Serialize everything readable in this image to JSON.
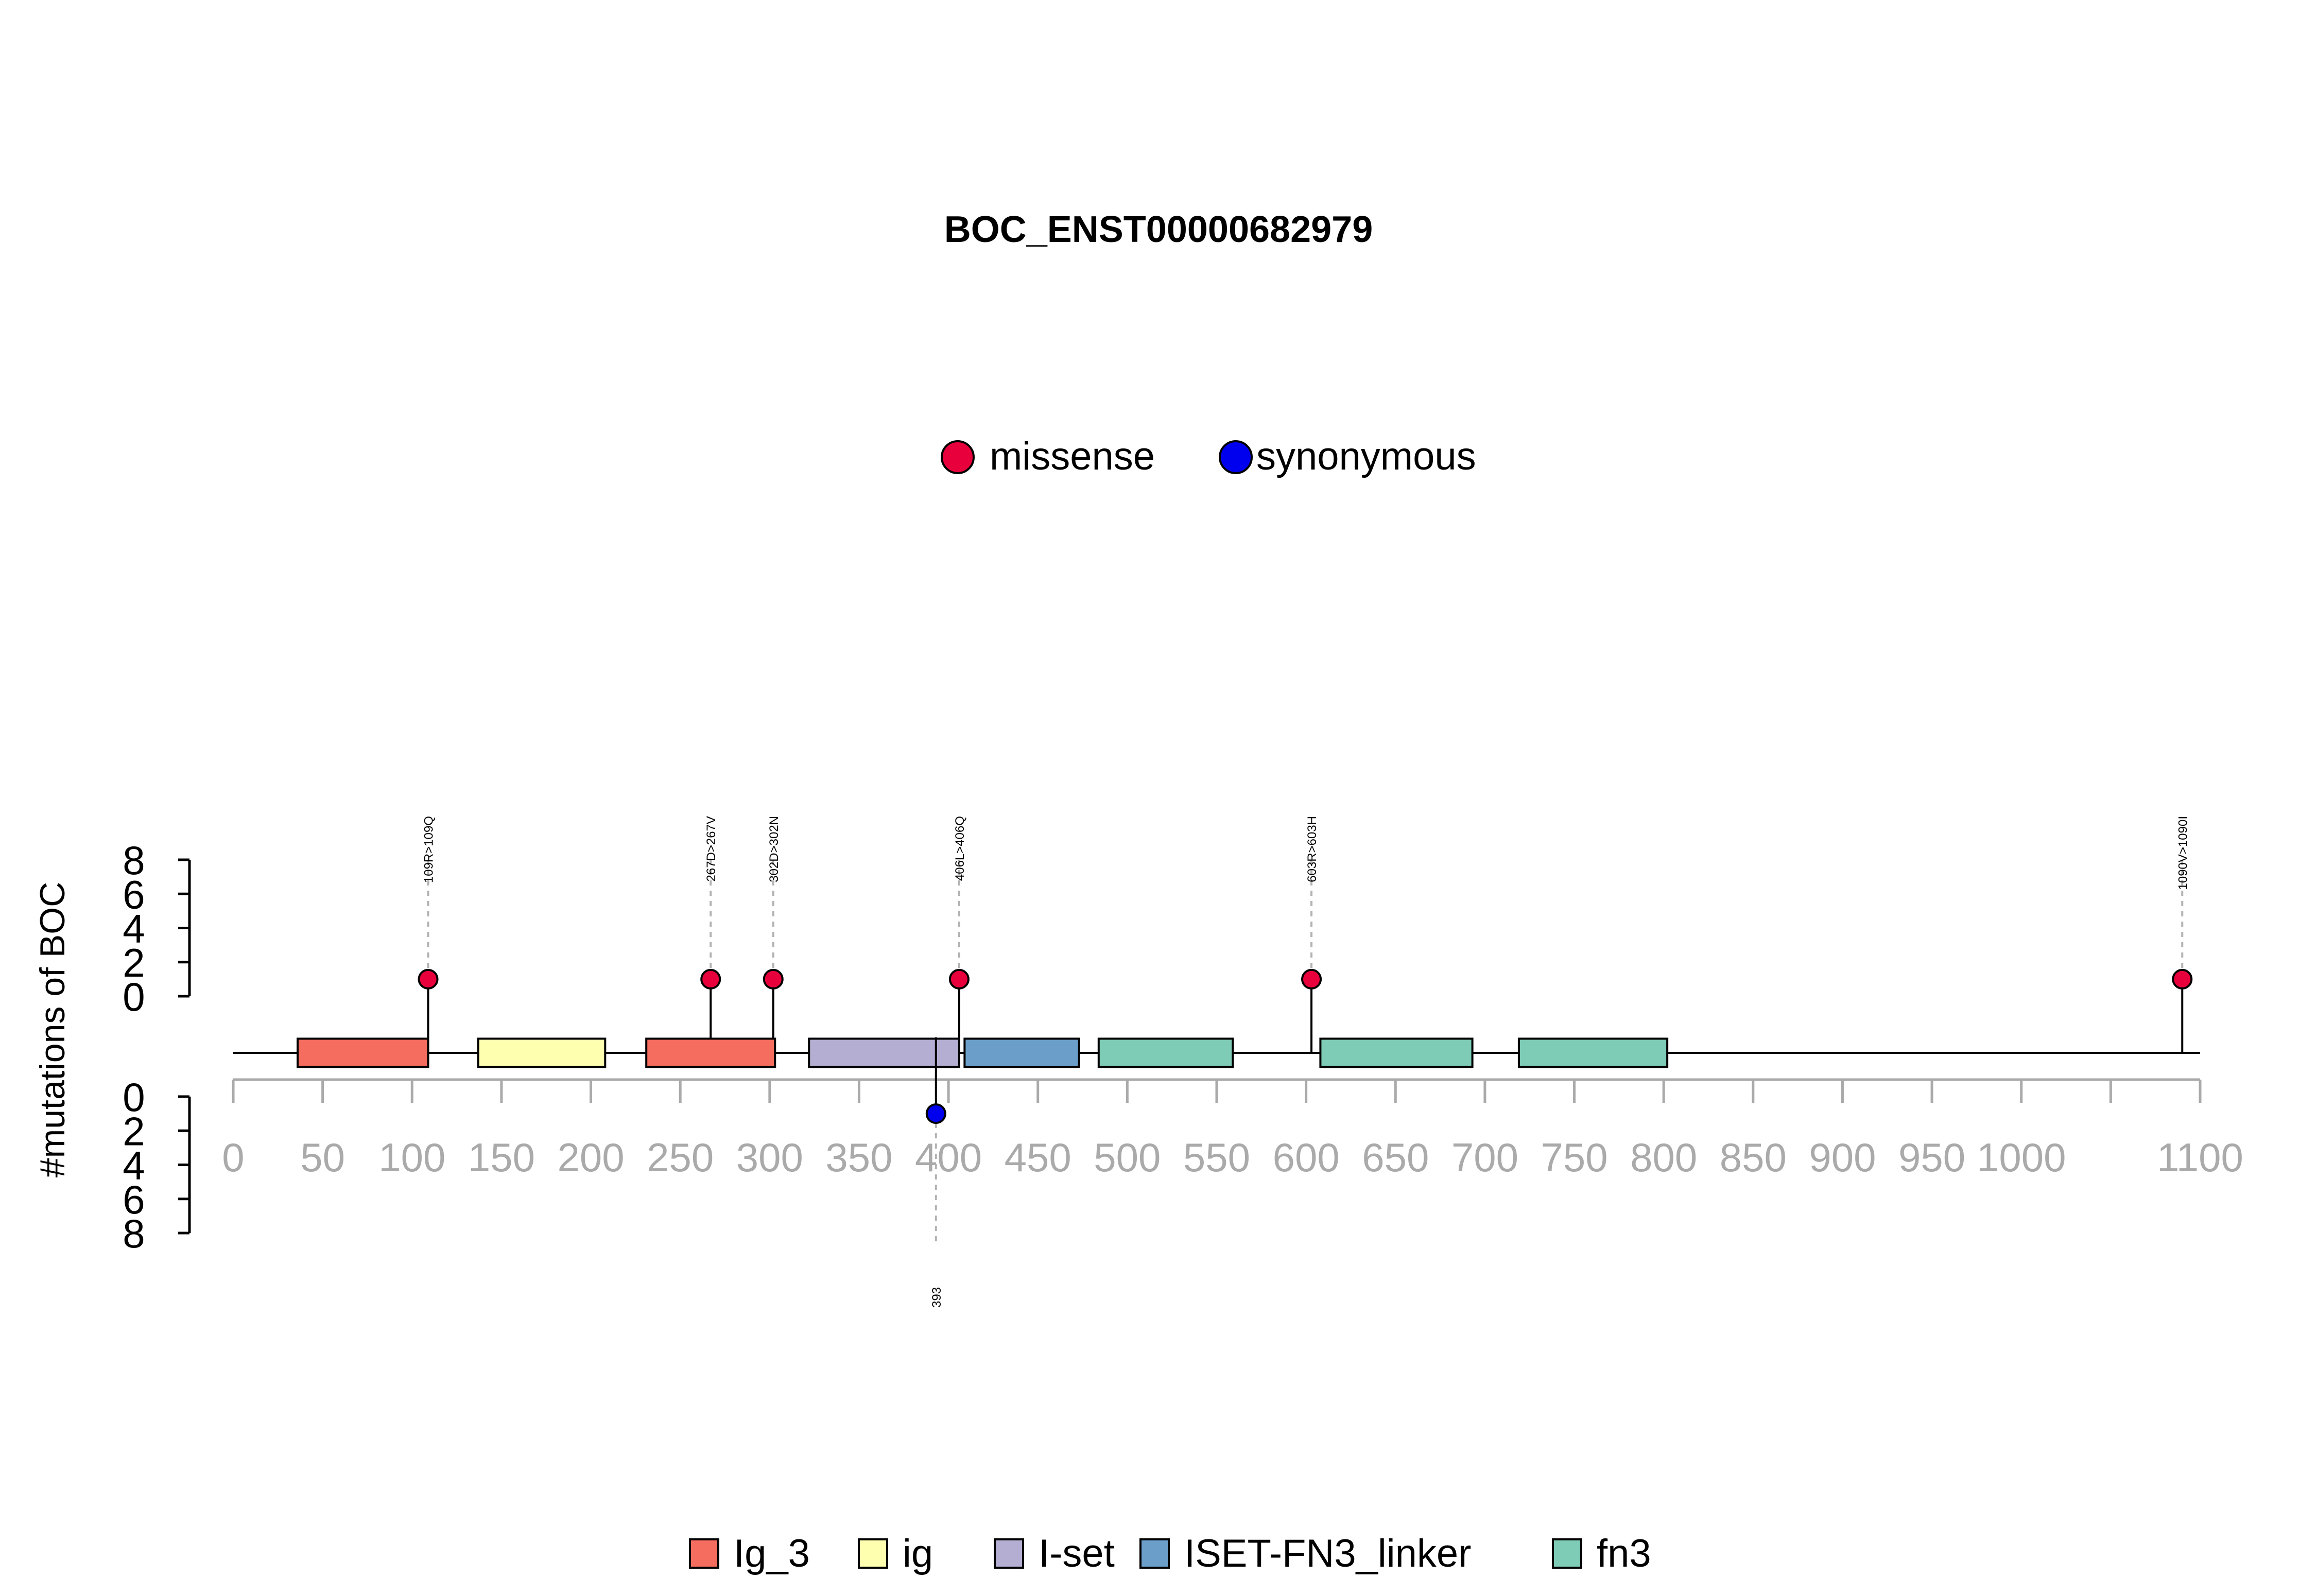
{
  "chart_data": {
    "type": "lollipop",
    "title": "BOC_ENST00000682979",
    "ylabel": "#mutations of BOC",
    "x_ticks": [
      "0",
      "50",
      "100",
      "150",
      "200",
      "250",
      "300",
      "350",
      "400",
      "450",
      "500",
      "550",
      "600",
      "650",
      "700",
      "750",
      "800",
      "850",
      "900",
      "950",
      "1000",
      "1100"
    ],
    "x_tick_values": [
      0,
      50,
      100,
      150,
      200,
      250,
      300,
      350,
      400,
      450,
      500,
      550,
      600,
      650,
      700,
      750,
      800,
      850,
      900,
      950,
      1000,
      1100
    ],
    "xlim": [
      0,
      1100
    ],
    "y_ticks": [
      "0",
      "2",
      "4",
      "6",
      "8"
    ],
    "y_tick_values": [
      0,
      2,
      4,
      6,
      8
    ],
    "ylim": [
      0,
      8
    ],
    "mutation_legend": [
      {
        "label": "missense",
        "color": "#e8003c"
      },
      {
        "label": "synonymous",
        "color": "#0000ee"
      }
    ],
    "domain_legend": [
      {
        "label": "Ig_3",
        "color": "#f46d5e"
      },
      {
        "label": "ig",
        "color": "#ffffb0"
      },
      {
        "label": "I-set",
        "color": "#b3aed2"
      },
      {
        "label": "ISET-FN3_linker",
        "color": "#6b9fca"
      },
      {
        "label": "fn3",
        "color": "#7ecbb6"
      }
    ],
    "domains": [
      {
        "name": "Ig_3",
        "start": 36,
        "end": 109
      },
      {
        "name": "ig",
        "start": 137,
        "end": 208
      },
      {
        "name": "Ig_3",
        "start": 231,
        "end": 303
      },
      {
        "name": "I-set",
        "start": 322,
        "end": 406
      },
      {
        "name": "ISET-FN3_linker",
        "start": 409,
        "end": 473
      },
      {
        "name": "fn3",
        "start": 484,
        "end": 559
      },
      {
        "name": "fn3",
        "start": 608,
        "end": 693
      },
      {
        "name": "fn3",
        "start": 719,
        "end": 802
      }
    ],
    "mutations_top": [
      {
        "label": "109R>109Q",
        "position": 109,
        "count": 1,
        "type": "missense"
      },
      {
        "label": "267D>267V",
        "position": 267,
        "count": 1,
        "type": "missense"
      },
      {
        "label": "302D>302N",
        "position": 302,
        "count": 1,
        "type": "missense"
      },
      {
        "label": "406L>406Q",
        "position": 406,
        "count": 1,
        "type": "missense"
      },
      {
        "label": "603R>603H",
        "position": 603,
        "count": 1,
        "type": "missense"
      },
      {
        "label": "1090V>1090I",
        "position": 1090,
        "count": 1,
        "type": "missense"
      }
    ],
    "mutations_bottom": [
      {
        "label": "393",
        "position": 393,
        "count": 1,
        "type": "synonymous"
      }
    ]
  }
}
